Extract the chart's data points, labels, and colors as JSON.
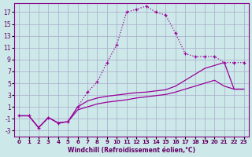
{
  "xlabel": "Windchill (Refroidissement éolien,°C)",
  "background_color": "#cce8e8",
  "grid_color": "#aaaacc",
  "line_color": "#990099",
  "x_ticks": [
    0,
    1,
    2,
    3,
    4,
    5,
    6,
    7,
    8,
    9,
    10,
    11,
    12,
    13,
    14,
    15,
    16,
    17,
    18,
    19,
    20,
    21,
    22,
    23
  ],
  "y_ticks": [
    -3,
    -1,
    1,
    3,
    5,
    7,
    9,
    11,
    13,
    15,
    17
  ],
  "xlim": [
    -0.5,
    23.5
  ],
  "ylim": [
    -4.0,
    18.5
  ],
  "line1_x": [
    0,
    1,
    2,
    3,
    4,
    5,
    6,
    7,
    8,
    9,
    10,
    11,
    12,
    13,
    14,
    15,
    16,
    17,
    18,
    19,
    20,
    21,
    22,
    23
  ],
  "line1_y": [
    -0.5,
    -0.5,
    -2.5,
    -0.8,
    -1.7,
    -1.5,
    1.0,
    3.5,
    5.2,
    8.5,
    11.5,
    17.0,
    17.5,
    18.0,
    17.0,
    16.5,
    13.5,
    10.0,
    9.5,
    9.5,
    9.5,
    8.5,
    8.5,
    8.5
  ],
  "line2_x": [
    0,
    1,
    2,
    3,
    4,
    5,
    6,
    7,
    8,
    9,
    10,
    11,
    12,
    13,
    14,
    15,
    16,
    17,
    18,
    19,
    20,
    21,
    22,
    23
  ],
  "line2_y": [
    -0.5,
    -0.5,
    -2.5,
    -0.8,
    -1.7,
    -1.5,
    1.0,
    2.0,
    2.5,
    2.8,
    3.0,
    3.2,
    3.4,
    3.5,
    3.7,
    3.9,
    4.5,
    5.5,
    6.5,
    7.5,
    8.0,
    8.5,
    4.0,
    4.0
  ],
  "line3_x": [
    0,
    1,
    2,
    3,
    4,
    5,
    6,
    7,
    8,
    9,
    10,
    11,
    12,
    13,
    14,
    15,
    16,
    17,
    18,
    19,
    20,
    21,
    22,
    23
  ],
  "line3_y": [
    -0.5,
    -0.5,
    -2.5,
    -0.8,
    -1.7,
    -1.5,
    0.5,
    1.0,
    1.5,
    1.8,
    2.0,
    2.2,
    2.5,
    2.7,
    2.9,
    3.1,
    3.5,
    4.0,
    4.5,
    5.0,
    5.5,
    4.5,
    4.0,
    4.0
  ]
}
